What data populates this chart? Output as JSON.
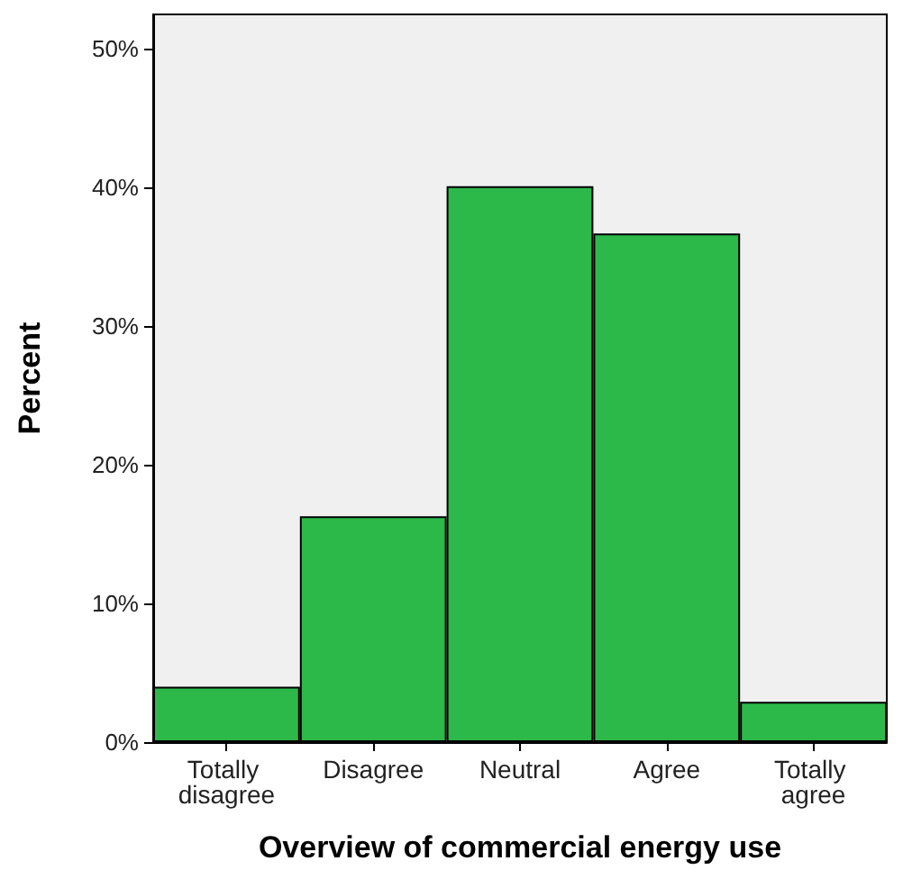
{
  "chart_data": {
    "type": "bar",
    "xlabel": "Overview of commercial energy use",
    "ylabel": "Percent",
    "categories": [
      "Totally disagree",
      "Disagree",
      "Neutral",
      "Agree",
      "Totally agree"
    ],
    "values": [
      4.0,
      16.3,
      40.1,
      36.7,
      2.9
    ],
    "color": "#2db84a",
    "ylim": [
      0,
      52.5
    ],
    "yticks": [
      {
        "value": 0,
        "label": "0%"
      },
      {
        "value": 10,
        "label": "10%"
      },
      {
        "value": 20,
        "label": "20%"
      },
      {
        "value": 30,
        "label": "30%"
      },
      {
        "value": 40,
        "label": "40%"
      },
      {
        "value": 50,
        "label": "50%"
      }
    ],
    "grid": false
  }
}
